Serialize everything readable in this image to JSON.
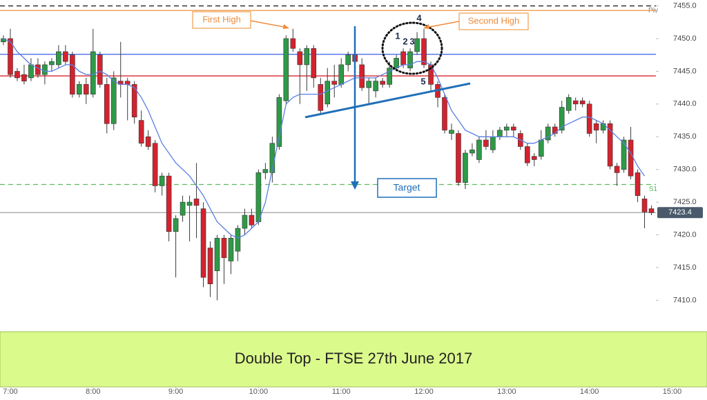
{
  "chart_data": {
    "type": "candlestick",
    "title": "Double Top - FTSE 27th June 2017",
    "x": [
      415,
      420,
      425,
      430,
      435,
      440,
      445,
      450,
      455,
      460,
      465,
      470,
      475,
      480,
      485,
      490,
      495,
      500,
      505,
      510,
      515,
      520,
      525,
      530,
      535,
      540,
      545,
      550,
      555,
      560,
      565,
      570,
      575,
      580,
      585,
      590,
      595,
      600,
      605,
      610,
      615,
      620,
      625,
      630,
      635,
      640,
      645,
      650,
      655,
      660,
      665,
      670,
      675,
      680,
      685,
      690,
      695,
      700,
      705,
      710,
      715,
      720,
      725,
      730,
      735,
      740,
      745,
      750,
      755,
      760,
      765,
      770,
      775,
      780,
      785,
      790,
      795,
      800,
      805,
      810,
      815,
      820,
      825,
      830,
      835,
      840,
      845,
      850,
      855,
      860,
      865,
      870,
      875,
      880,
      885
    ],
    "open": [
      7449.5,
      7450,
      7445,
      7444.5,
      7444,
      7446,
      7444.5,
      7446,
      7446,
      7448,
      7447.5,
      7441.5,
      7443,
      7441.5,
      7447.5,
      7443,
      7437,
      7443.5,
      7443.5,
      7443,
      7437.5,
      7435,
      7434,
      7427.5,
      7429,
      7420.5,
      7423,
      7424.5,
      7425.5,
      7424,
      7418,
      7414.5,
      7419.5,
      7416,
      7417.5,
      7421,
      7423,
      7422,
      7429.5,
      7429.5,
      7433.5,
      7440.5,
      7450,
      7448,
      7446,
      7448.5,
      7443,
      7440,
      7443.5,
      7443,
      7446,
      7447.5,
      7446,
      7442.5,
      7442,
      7443.5,
      7443,
      7445.5,
      7448,
      7445.5,
      7448,
      7450,
      7446,
      7443,
      7441,
      7435.5,
      7435.5,
      7428,
      7432.5,
      7431.5,
      7434.5,
      7433,
      7435,
      7436,
      7436.5,
      7435.5,
      7433.5,
      7432,
      7432,
      7434.5,
      7436.5,
      7436,
      7439,
      7440.5,
      7440.5,
      7440,
      7437,
      7436,
      7437,
      7430.5,
      7430,
      7434.5,
      7429.5,
      7425.5,
      7424
    ],
    "high": [
      7450.5,
      7451.5,
      7445.5,
      7446,
      7447,
      7447,
      7446.5,
      7447,
      7449,
      7449,
      7448,
      7443.5,
      7444,
      7451.5,
      7448,
      7444,
      7445,
      7449.5,
      7444,
      7443.5,
      7439,
      7436,
      7434.5,
      7429.5,
      7429.5,
      7423,
      7426,
      7426,
      7431,
      7425,
      7419,
      7420,
      7420,
      7420,
      7421.5,
      7424,
      7424,
      7430,
      7431,
      7435,
      7441.5,
      7450.5,
      7451.5,
      7448.5,
      7449,
      7449,
      7444,
      7445.5,
      7446,
      7447,
      7448,
      7448,
      7447,
      7444,
      7444,
      7444,
      7446.5,
      7447.5,
      7448.5,
      7448.5,
      7451,
      7451.5,
      7446.5,
      7443.5,
      7441.5,
      7437,
      7436,
      7433,
      7434,
      7435,
      7436,
      7436,
      7436.5,
      7437,
      7437,
      7436,
      7434,
      7432.5,
      7436,
      7437,
      7437,
      7440.5,
      7441.5,
      7441,
      7441,
      7440.5,
      7437.5,
      7437.5,
      7437.5,
      7431,
      7435,
      7436.5,
      7430,
      7426,
      7424.5
    ],
    "low": [
      7449,
      7444,
      7443.5,
      7443,
      7443.5,
      7444,
      7443,
      7445,
      7445.5,
      7446,
      7441,
      7441,
      7440,
      7441,
      7442.5,
      7435.5,
      7436,
      7441,
      7437.5,
      7437,
      7433.5,
      7433,
      7426.5,
      7426,
      7419,
      7413.5,
      7422,
      7419,
      7419.5,
      7412,
      7410.5,
      7410,
      7412.5,
      7414,
      7416,
      7420,
      7421,
      7421.5,
      7428.5,
      7428,
      7433,
      7440,
      7448,
      7440,
      7442,
      7442.5,
      7438.5,
      7439.5,
      7441,
      7442.5,
      7445,
      7443.5,
      7442,
      7440,
      7441,
      7442.5,
      7442.5,
      7445,
      7445.5,
      7445,
      7447.5,
      7445.5,
      7442,
      7439.5,
      7435.5,
      7434.5,
      7427.5,
      7427,
      7432,
      7431,
      7433,
      7432.5,
      7434.5,
      7435,
      7435,
      7433,
      7430.5,
      7430.5,
      7431.5,
      7434,
      7435,
      7435.5,
      7438.5,
      7439,
      7439.5,
      7435,
      7434,
      7435.5,
      7430,
      7427.5,
      7429.5,
      7428.5,
      7425,
      7421,
      7423
    ],
    "close": [
      7450,
      7444.5,
      7444,
      7443.5,
      7446,
      7444.5,
      7446,
      7446.5,
      7448,
      7446.5,
      7441.5,
      7443,
      7441.5,
      7448,
      7443,
      7437,
      7444,
      7443,
      7443,
      7438,
      7434,
      7433.5,
      7427.5,
      7429,
      7420.5,
      7422.5,
      7425,
      7425,
      7424.5,
      7413.5,
      7412.5,
      7419.5,
      7416.5,
      7419.5,
      7421,
      7423,
      7421.5,
      7429.5,
      7430,
      7434,
      7441,
      7450,
      7448.5,
      7446,
      7448.5,
      7444,
      7439,
      7443.5,
      7443,
      7446,
      7447.5,
      7446.5,
      7442.5,
      7443.5,
      7443.5,
      7443,
      7445.5,
      7447,
      7446,
      7448,
      7450,
      7446,
      7443,
      7441,
      7436,
      7436,
      7428,
      7432.5,
      7433,
      7434.5,
      7433.5,
      7435,
      7436,
      7436.5,
      7436,
      7433.5,
      7431,
      7431.5,
      7434.5,
      7436.5,
      7435.5,
      7439.5,
      7441,
      7440,
      7440,
      7435.5,
      7436,
      7437,
      7430.5,
      7429.5,
      7434.5,
      7429,
      7426,
      7423.5,
      7423.4
    ],
    "ma_values": [
      7450,
      7449.5,
      7448,
      7447,
      7446,
      7445.5,
      7445,
      7445,
      7445.5,
      7446,
      7446,
      7445,
      7444.5,
      7444.5,
      7445,
      7444.5,
      7443.5,
      7443,
      7443,
      7442.5,
      7441,
      7439,
      7436.5,
      7434,
      7432.5,
      7431,
      7430,
      7429,
      7427.5,
      7426,
      7424,
      7422,
      7421,
      7420,
      7419.5,
      7420,
      7421,
      7422,
      7425,
      7430,
      7435,
      7440,
      7441,
      7441.5,
      7441.5,
      7441.5,
      7441.5,
      7442,
      7442.5,
      7443,
      7443.5,
      7444,
      7444,
      7444,
      7444,
      7444.5,
      7445,
      7445.5,
      7446,
      7446,
      7446.5,
      7446.5,
      7446,
      7444,
      7441.5,
      7439,
      7437.5,
      7436,
      7435.5,
      7435,
      7435,
      7435,
      7435,
      7435,
      7435,
      7434.5,
      7434,
      7434,
      7434.5,
      7435,
      7435.5,
      7436.5,
      7437,
      7437.5,
      7438,
      7438,
      7437.5,
      7437,
      7436,
      7435,
      7434,
      7432.5,
      7430.5,
      7429,
      null
    ],
    "up_color": "#2e9a47",
    "down_color": "#d3232e",
    "wick_color": "#3a3a3a",
    "ma_color": "#5b7fe0",
    "levels": [
      {
        "value": 7455,
        "color": "#222222",
        "dashed": true,
        "name": "Piv"
      },
      {
        "value": 7454.3,
        "color": "#f0994a",
        "dashed": false
      },
      {
        "value": 7447.6,
        "color": "#3a5ee8",
        "dashed": false
      },
      {
        "value": 7444.3,
        "color": "#d8262e",
        "dashed": false
      },
      {
        "value": 7427.7,
        "color": "#5cb85c",
        "dashed": true,
        "name": "S1"
      },
      {
        "value": 7423.4,
        "color": "#aaaaaa",
        "dashed": false,
        "tag": true
      }
    ],
    "xlim": [
      412.5,
      925.3
    ],
    "ylim": [
      7405.3,
      7455.9
    ],
    "xticks": [
      {
        "value": 420,
        "label": "7:00"
      },
      {
        "value": 480,
        "label": "8:00"
      },
      {
        "value": 540,
        "label": "9:00"
      },
      {
        "value": 600,
        "label": "10:00"
      },
      {
        "value": 660,
        "label": "11:00"
      },
      {
        "value": 720,
        "label": "12:00"
      },
      {
        "value": 780,
        "label": "13:00"
      },
      {
        "value": 840,
        "label": "14:00"
      },
      {
        "value": 900,
        "label": "15:00"
      }
    ],
    "yticks": [
      {
        "value": 7410,
        "label": "7410.0"
      },
      {
        "value": 7415,
        "label": "7415.0"
      },
      {
        "value": 7420,
        "label": "7420.0"
      },
      {
        "value": 7425,
        "label": "7425.0"
      },
      {
        "value": 7430,
        "label": "7430.0"
      },
      {
        "value": 7435,
        "label": "7435.0"
      },
      {
        "value": 7440,
        "label": "7440.0"
      },
      {
        "value": 7445,
        "label": "7445.0"
      },
      {
        "value": 7450,
        "label": "7450.0"
      },
      {
        "value": 7455,
        "label": "7455.0"
      }
    ],
    "annotations": {
      "first_high": "First High",
      "second_high": "Second High",
      "target": "Target",
      "swing_labels": [
        "1",
        "2",
        "3",
        "4",
        "5"
      ]
    }
  }
}
